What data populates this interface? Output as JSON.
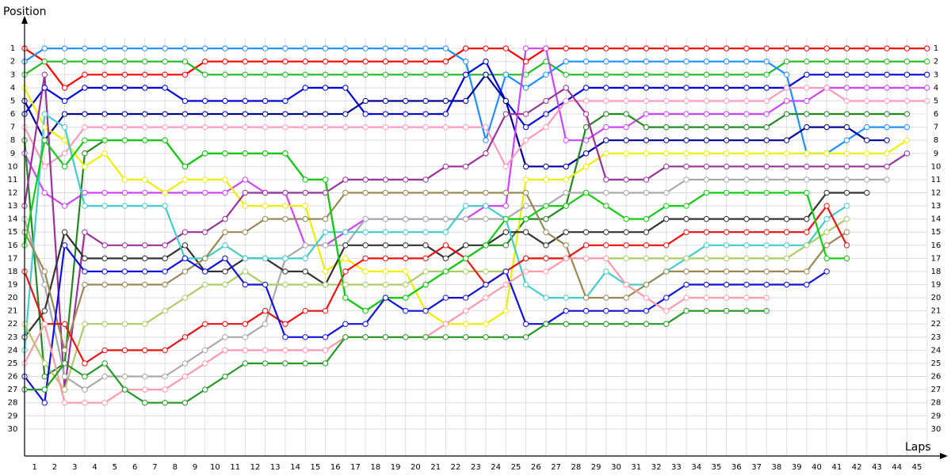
{
  "chart_data": {
    "type": "line",
    "x_label": "Laps",
    "y_label": "Position",
    "x": [
      0,
      1,
      2,
      3,
      4,
      5,
      6,
      7,
      8,
      9,
      10,
      11,
      12,
      13,
      14,
      15,
      16,
      17,
      18,
      19,
      20,
      21,
      22,
      23,
      24,
      25,
      26,
      27,
      28,
      29,
      30,
      31,
      32,
      33,
      34,
      35,
      36,
      37,
      38,
      39,
      40,
      41,
      42,
      43,
      44,
      45
    ],
    "xlim": [
      0,
      46
    ],
    "ylim": [
      32,
      -1
    ],
    "xticks": [
      1,
      2,
      3,
      4,
      5,
      6,
      7,
      8,
      9,
      10,
      11,
      12,
      13,
      14,
      15,
      16,
      17,
      18,
      19,
      20,
      21,
      22,
      23,
      24,
      25,
      26,
      27,
      28,
      29,
      30,
      31,
      32,
      33,
      34,
      35,
      36,
      37,
      38,
      39,
      40,
      41,
      42,
      43,
      44,
      45
    ],
    "yticks": [
      1,
      2,
      3,
      4,
      5,
      6,
      7,
      8,
      9,
      10,
      11,
      12,
      13,
      14,
      15,
      16,
      17,
      18,
      19,
      20,
      21,
      22,
      23,
      24,
      25,
      26,
      27,
      28,
      29,
      30
    ],
    "grid": true,
    "series": [
      {
        "color": "#ff0000",
        "values": [
          1,
          2,
          4,
          3,
          3,
          3,
          3,
          3,
          3,
          2,
          2,
          2,
          2,
          2,
          2,
          2,
          2,
          2,
          2,
          2,
          2,
          2,
          1,
          1,
          1,
          2,
          1,
          1,
          1,
          1,
          1,
          1,
          1,
          1,
          1,
          1,
          1,
          1,
          1,
          1,
          1,
          1,
          1,
          1,
          1,
          1
        ]
      },
      {
        "color": "#22bb22",
        "values": [
          3,
          2,
          2,
          2,
          2,
          2,
          2,
          2,
          2,
          3,
          3,
          3,
          3,
          3,
          3,
          3,
          3,
          3,
          3,
          3,
          3,
          3,
          3,
          3,
          3,
          3,
          2,
          3,
          3,
          3,
          3,
          3,
          3,
          3,
          3,
          3,
          3,
          3,
          2,
          2,
          2,
          2,
          2,
          2,
          2,
          2
        ]
      },
      {
        "color": "#1e90ff",
        "values": [
          2,
          1,
          1,
          1,
          1,
          1,
          1,
          1,
          1,
          1,
          1,
          1,
          1,
          1,
          1,
          1,
          1,
          1,
          1,
          1,
          1,
          1,
          2,
          8,
          3,
          4,
          3,
          2,
          2,
          2,
          2,
          2,
          2,
          2,
          2,
          2,
          2,
          2,
          3,
          9,
          9,
          8,
          7,
          7,
          7,
          null
        ]
      },
      {
        "color": "#0000dd",
        "values": [
          6,
          4,
          5,
          4,
          4,
          4,
          4,
          4,
          5,
          5,
          5,
          5,
          5,
          5,
          4,
          4,
          4,
          6,
          6,
          6,
          6,
          6,
          3,
          2,
          5,
          7,
          6,
          5,
          4,
          4,
          4,
          4,
          4,
          4,
          4,
          4,
          4,
          4,
          4,
          3,
          3,
          3,
          3,
          3,
          3,
          3
        ]
      },
      {
        "color": "#000099",
        "values": [
          5,
          8,
          6,
          6,
          6,
          6,
          6,
          6,
          6,
          6,
          6,
          6,
          6,
          6,
          6,
          6,
          6,
          5,
          5,
          5,
          5,
          5,
          5,
          3,
          5,
          10,
          10,
          10,
          9,
          8,
          8,
          8,
          8,
          8,
          8,
          8,
          8,
          8,
          8,
          7,
          7,
          7,
          8,
          8,
          null,
          null
        ]
      },
      {
        "color": "#cc44ff",
        "values": [
          9,
          12,
          13,
          12,
          12,
          12,
          12,
          12,
          12,
          12,
          12,
          11,
          12,
          12,
          16,
          16,
          15,
          14,
          14,
          14,
          14,
          14,
          14,
          13,
          13,
          1,
          1,
          8,
          8,
          7,
          7,
          6,
          6,
          6,
          6,
          6,
          6,
          6,
          5,
          5,
          4,
          4,
          4,
          4,
          4,
          4
        ]
      },
      {
        "color": "#ff99bb",
        "values": [
          7,
          10,
          9,
          7,
          7,
          7,
          7,
          7,
          7,
          7,
          7,
          7,
          7,
          7,
          7,
          7,
          7,
          7,
          7,
          7,
          7,
          7,
          7,
          7,
          10,
          8,
          7,
          5,
          5,
          5,
          5,
          5,
          5,
          5,
          5,
          5,
          5,
          5,
          4,
          4,
          4,
          5,
          5,
          5,
          5,
          5
        ]
      },
      {
        "color": "#228822",
        "values": [
          8,
          26,
          25,
          9,
          8,
          8,
          8,
          8,
          10,
          9,
          9,
          9,
          9,
          9,
          11,
          11,
          20,
          21,
          20,
          20,
          19,
          18,
          17,
          16,
          16,
          14,
          14,
          13,
          7,
          6,
          6,
          7,
          7,
          7,
          7,
          7,
          7,
          7,
          6,
          6,
          6,
          6,
          6,
          6,
          6,
          null
        ]
      },
      {
        "color": "#eeee00",
        "values": [
          4,
          7,
          8,
          10,
          9,
          11,
          11,
          12,
          11,
          11,
          11,
          13,
          13,
          13,
          13,
          18,
          17,
          18,
          18,
          18,
          21,
          22,
          22,
          22,
          21,
          11,
          11,
          11,
          10,
          9,
          9,
          9,
          9,
          9,
          9,
          9,
          9,
          9,
          9,
          9,
          9,
          9,
          9,
          9,
          8,
          null
        ]
      },
      {
        "color": "#993399",
        "values": [
          13,
          3,
          27,
          15,
          16,
          16,
          16,
          16,
          15,
          15,
          14,
          12,
          12,
          12,
          12,
          12,
          11,
          11,
          11,
          11,
          11,
          10,
          10,
          9,
          6,
          6,
          5,
          4,
          6,
          11,
          11,
          11,
          10,
          10,
          10,
          10,
          10,
          10,
          10,
          10,
          10,
          10,
          10,
          10,
          9,
          null
        ]
      },
      {
        "color": "#aaaaaa",
        "values": [
          14,
          19,
          26,
          27,
          26,
          26,
          26,
          26,
          25,
          24,
          23,
          23,
          22,
          17,
          16,
          16,
          16,
          14,
          14,
          14,
          14,
          14,
          14,
          14,
          14,
          13,
          13,
          12,
          12,
          12,
          12,
          12,
          12,
          11,
          11,
          11,
          11,
          11,
          11,
          11,
          11,
          11,
          11,
          11,
          null,
          null
        ]
      },
      {
        "color": "#333333",
        "values": [
          23,
          21,
          15,
          17,
          17,
          17,
          17,
          17,
          16,
          18,
          18,
          17,
          17,
          18,
          18,
          19,
          16,
          16,
          16,
          16,
          16,
          17,
          16,
          16,
          15,
          15,
          16,
          15,
          15,
          15,
          15,
          15,
          14,
          14,
          14,
          14,
          14,
          14,
          14,
          14,
          12,
          12,
          12,
          null,
          null,
          null
        ]
      },
      {
        "color": "#44cccc",
        "values": [
          24,
          6,
          7,
          13,
          13,
          13,
          13,
          13,
          17,
          17,
          16,
          17,
          17,
          17,
          17,
          15,
          15,
          15,
          15,
          15,
          15,
          15,
          13,
          13,
          14,
          19,
          20,
          20,
          20,
          18,
          19,
          19,
          18,
          17,
          16,
          16,
          16,
          16,
          16,
          16,
          14,
          13,
          null,
          null,
          null,
          null
        ]
      },
      {
        "color": "#aacc66",
        "values": [
          22,
          25,
          27,
          22,
          22,
          22,
          22,
          21,
          20,
          19,
          19,
          18,
          19,
          19,
          19,
          19,
          19,
          19,
          19,
          19,
          18,
          18,
          18,
          18,
          18,
          17,
          17,
          17,
          17,
          17,
          17,
          17,
          17,
          17,
          17,
          17,
          17,
          17,
          17,
          16,
          15,
          14,
          null,
          null,
          null,
          null
        ]
      },
      {
        "color": "#998855",
        "values": [
          15,
          18,
          24,
          19,
          19,
          19,
          19,
          19,
          18,
          17,
          15,
          15,
          14,
          14,
          14,
          14,
          12,
          12,
          12,
          12,
          12,
          12,
          12,
          12,
          12,
          12,
          15,
          16,
          20,
          20,
          20,
          19,
          18,
          18,
          18,
          18,
          18,
          18,
          18,
          18,
          16,
          15,
          null,
          null,
          null,
          null
        ]
      },
      {
        "color": "#ee1111",
        "values": [
          18,
          22,
          22,
          25,
          24,
          24,
          24,
          24,
          23,
          22,
          22,
          22,
          21,
          22,
          21,
          21,
          18,
          17,
          17,
          17,
          17,
          16,
          17,
          19,
          18,
          17,
          17,
          17,
          16,
          16,
          16,
          16,
          16,
          15,
          15,
          15,
          15,
          15,
          15,
          15,
          13,
          16,
          null,
          null,
          null,
          null
        ]
      },
      {
        "color": "#11cc11",
        "values": [
          16,
          8,
          10,
          8,
          8,
          8,
          8,
          8,
          10,
          9,
          9,
          9,
          9,
          9,
          11,
          11,
          20,
          21,
          20,
          20,
          19,
          18,
          17,
          16,
          14,
          14,
          13,
          13,
          12,
          13,
          14,
          14,
          13,
          13,
          12,
          12,
          12,
          12,
          12,
          12,
          17,
          17,
          null,
          null,
          null,
          null
        ]
      },
      {
        "color": "#1111dd",
        "values": [
          26,
          28,
          16,
          18,
          18,
          18,
          18,
          18,
          17,
          18,
          17,
          19,
          19,
          23,
          23,
          23,
          22,
          22,
          20,
          21,
          21,
          20,
          20,
          19,
          18,
          22,
          22,
          21,
          21,
          21,
          21,
          21,
          20,
          19,
          19,
          19,
          19,
          19,
          19,
          19,
          18,
          null,
          null,
          null,
          null,
          null
        ]
      },
      {
        "color": "#ff99aa",
        "values": [
          25,
          22,
          28,
          28,
          28,
          27,
          27,
          27,
          26,
          25,
          24,
          24,
          24,
          24,
          24,
          24,
          23,
          23,
          23,
          23,
          23,
          22,
          21,
          20,
          19,
          18,
          18,
          17,
          17,
          17,
          19,
          20,
          21,
          20,
          20,
          20,
          20,
          20,
          null,
          null,
          null,
          null,
          null,
          null,
          null,
          null
        ]
      },
      {
        "color": "#229922",
        "values": [
          27,
          27,
          25,
          26,
          25,
          27,
          28,
          28,
          28,
          27,
          26,
          25,
          25,
          25,
          25,
          25,
          23,
          23,
          23,
          23,
          23,
          23,
          23,
          23,
          23,
          23,
          22,
          22,
          22,
          22,
          22,
          22,
          22,
          21,
          21,
          21,
          21,
          21,
          null,
          null,
          null,
          null,
          null,
          null,
          null,
          null
        ]
      }
    ]
  }
}
